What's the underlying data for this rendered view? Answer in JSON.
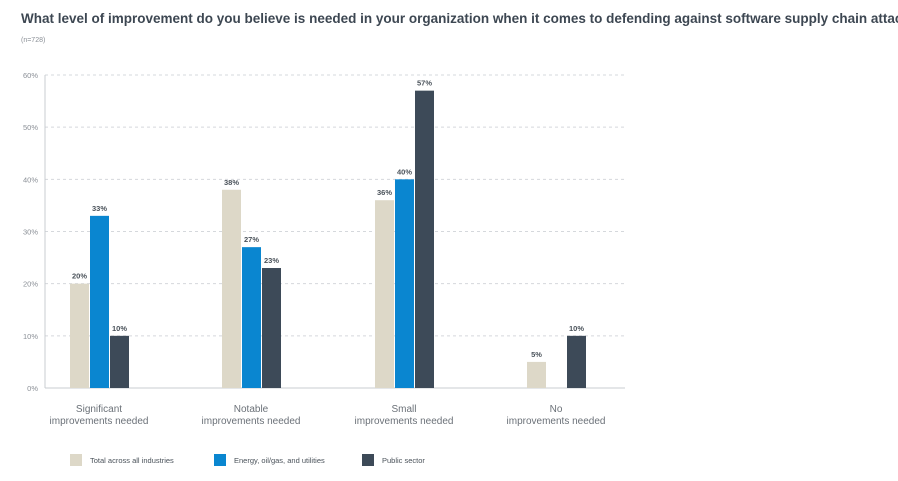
{
  "chart_data": {
    "type": "bar",
    "title": "What level of improvement do you believe is needed in your organization when it comes to defending against software supply chain attacks?",
    "subtitle": "(n=728)",
    "categories": [
      [
        "Significant",
        "improvements needed"
      ],
      [
        "Notable",
        "improvements needed"
      ],
      [
        "Small",
        "improvements needed"
      ],
      [
        "No",
        "improvements needed"
      ]
    ],
    "series": [
      {
        "name": "Total across all industries",
        "color": "#ddd8c8",
        "values": [
          20,
          38,
          36,
          5
        ]
      },
      {
        "name": "Energy, oil/gas, and utilities",
        "color": "#0a86d0",
        "values": [
          33,
          27,
          40,
          null
        ]
      },
      {
        "name": "Public sector",
        "color": "#3d4a58",
        "values": [
          10,
          23,
          57,
          10
        ]
      }
    ],
    "ylim": [
      0,
      60
    ],
    "yticks": [
      0,
      10,
      20,
      30,
      40,
      50,
      60
    ],
    "ytick_labels": [
      "0%",
      "10%",
      "20%",
      "30%",
      "40%",
      "50%",
      "60%"
    ],
    "grid": true,
    "legend": "bottom"
  }
}
